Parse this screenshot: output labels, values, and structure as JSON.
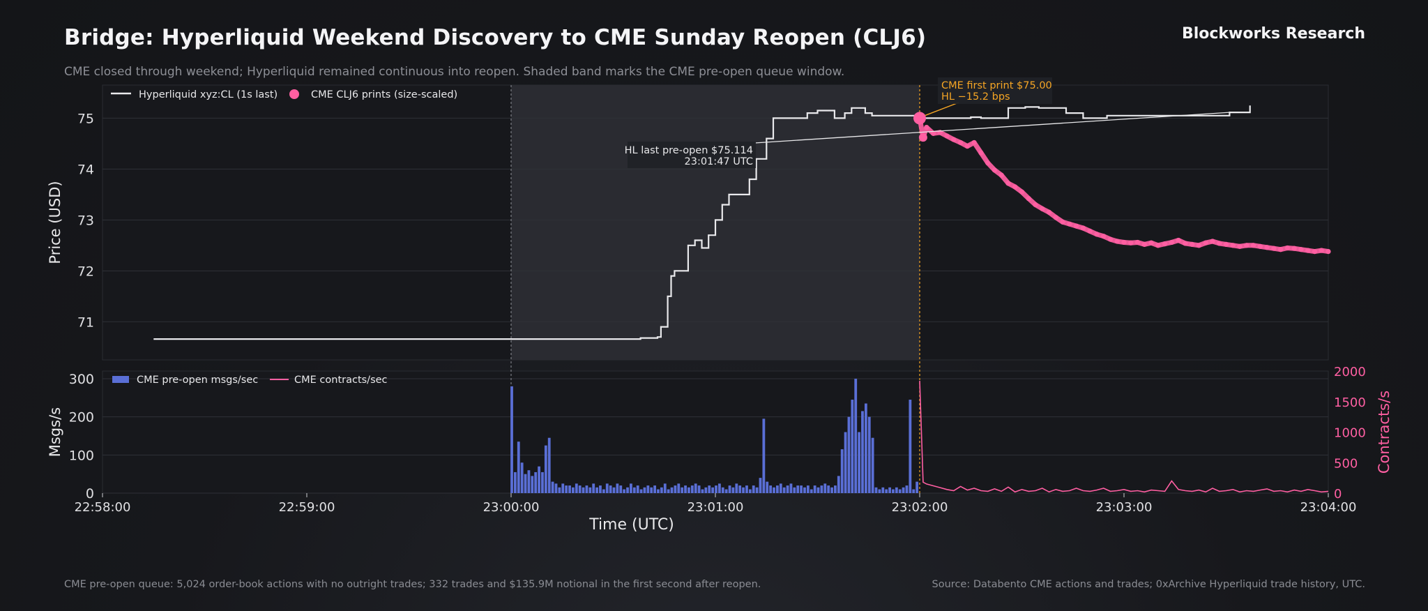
{
  "header": {
    "title": "Bridge: Hyperliquid Weekend Discovery to CME Sunday Reopen (CLJ6)",
    "brand": "Blockworks Research",
    "subtitle": "CME closed through weekend; Hyperliquid remained continuous into reopen. Shaded band marks the CME pre-open queue window."
  },
  "footer": {
    "left": "CME pre-open queue: 5,024 order-book actions with no outright trades; 332 trades and $135.9M notional in the first second after reopen.",
    "right": "Source: Databento CME actions and trades; 0xArchive Hyperliquid trade history, UTC."
  },
  "colors": {
    "hl_line": "#e9e9ec",
    "cme_prints": "#ff5fa2",
    "msgs_bar": "#5a6fd6",
    "contracts_line": "#ff5fa2",
    "annotation_orange": "#f5a524",
    "shade": "#2c2e34"
  },
  "chart_data": [
    {
      "type": "line",
      "panel": "price",
      "ylabel": "Price (USD)",
      "ylim": [
        70.25,
        75.65
      ],
      "yticks": [
        "71",
        "72",
        "73",
        "74",
        "75"
      ],
      "shaded_window": {
        "start": "23:00:00",
        "end": "23:02:00",
        "label": "CME pre-open queue window"
      },
      "legend": [
        "Hyperliquid xyz:CL (1s last)",
        "CME CLJ6 prints (size-scaled)"
      ],
      "annotations": {
        "hl_last_line1": "HL last pre-open $75.114",
        "hl_last_line2": "23:01:47 UTC",
        "cme_first_line1": "CME first print $75.00",
        "cme_first_line2": "HL −15.2 bps"
      },
      "series": [
        {
          "name": "Hyperliquid xyz:CL (1s last)",
          "x_seconds_from_225800": [
            15,
            140,
            150,
            156,
            158,
            160,
            162,
            163,
            164,
            166,
            167,
            168,
            169,
            170,
            172,
            174,
            176,
            178,
            180,
            182,
            184,
            186,
            188,
            190,
            192,
            194,
            195,
            197,
            200,
            205,
            207,
            210,
            212,
            215,
            218,
            220,
            222,
            224,
            226,
            240,
            251,
            255,
            258,
            262,
            266,
            271,
            275,
            280,
            283,
            288,
            295,
            300,
            310,
            320,
            329,
            331,
            337
          ],
          "values": [
            70.66,
            70.66,
            70.66,
            70.66,
            70.68,
            70.68,
            70.68,
            70.7,
            70.9,
            71.5,
            71.9,
            72.0,
            72.0,
            72.0,
            72.5,
            72.6,
            72.45,
            72.7,
            73.0,
            73.3,
            73.5,
            73.5,
            73.5,
            73.8,
            74.2,
            74.2,
            74.6,
            75.0,
            75.0,
            75.0,
            75.1,
            75.15,
            75.15,
            75.0,
            75.1,
            75.2,
            75.2,
            75.1,
            75.05,
            75.0,
            75.0,
            75.02,
            75.0,
            75.0,
            75.2,
            75.22,
            75.2,
            75.2,
            75.1,
            75.0,
            75.05,
            75.05,
            75.05,
            75.05,
            75.05,
            75.114,
            75.25
          ]
        },
        {
          "name": "CME CLJ6 prints (size-scaled)",
          "x_seconds_from_225800": [
            240,
            241,
            242,
            244,
            246,
            248,
            250,
            252,
            254,
            256,
            258,
            260,
            262,
            264,
            266,
            268,
            270,
            272,
            274,
            276,
            278,
            280,
            282,
            284,
            286,
            288,
            290,
            292,
            294,
            296,
            298,
            300,
            302,
            304,
            306,
            308,
            310,
            312,
            314,
            316,
            318,
            320,
            322,
            324,
            326,
            328,
            330,
            332,
            334,
            336,
            338,
            340,
            342,
            344,
            346,
            348,
            350,
            352,
            354,
            356,
            358,
            360
          ],
          "values": [
            75.0,
            74.62,
            74.82,
            74.7,
            74.72,
            74.65,
            74.58,
            74.52,
            74.45,
            74.52,
            74.32,
            74.12,
            73.98,
            73.88,
            73.72,
            73.65,
            73.55,
            73.42,
            73.3,
            73.22,
            73.15,
            73.05,
            72.96,
            72.92,
            72.88,
            72.84,
            72.78,
            72.72,
            72.68,
            72.62,
            72.58,
            72.56,
            72.55,
            72.56,
            72.52,
            72.55,
            72.5,
            72.53,
            72.56,
            72.6,
            72.54,
            72.52,
            72.5,
            72.55,
            72.58,
            72.54,
            72.52,
            72.5,
            72.48,
            72.5,
            72.5,
            72.48,
            72.46,
            72.44,
            72.42,
            72.45,
            72.44,
            72.42,
            72.4,
            72.38,
            72.4,
            72.38
          ]
        }
      ]
    },
    {
      "type": "bar",
      "panel": "volume",
      "ylabel": "Msgs/s",
      "ylabel_right": "Contracts/s",
      "xlabel": "Time (UTC)",
      "ylim": [
        0,
        320
      ],
      "ylim_right": [
        0,
        2000
      ],
      "yticks": [
        "0",
        "100",
        "200",
        "300"
      ],
      "yticks_right": [
        "0",
        "500",
        "1000",
        "1500",
        "2000"
      ],
      "xticks": [
        "22:58:00",
        "22:59:00",
        "23:00:00",
        "23:01:00",
        "23:02:00",
        "23:03:00",
        "23:04:00"
      ],
      "legend": [
        "CME pre-open msgs/sec",
        "CME contracts/sec"
      ],
      "series": [
        {
          "name": "CME pre-open msgs/sec",
          "x_seconds_from_225800": [
            120,
            121,
            122,
            123,
            124,
            125,
            126,
            127,
            128,
            129,
            130,
            131,
            132,
            133,
            134,
            135,
            136,
            137,
            138,
            139,
            140,
            141,
            142,
            143,
            144,
            145,
            146,
            147,
            148,
            149,
            150,
            151,
            152,
            153,
            154,
            155,
            156,
            157,
            158,
            159,
            160,
            161,
            162,
            163,
            164,
            165,
            166,
            167,
            168,
            169,
            170,
            171,
            172,
            173,
            174,
            175,
            176,
            177,
            178,
            179,
            180,
            181,
            182,
            183,
            184,
            185,
            186,
            187,
            188,
            189,
            190,
            191,
            192,
            193,
            194,
            195,
            196,
            197,
            198,
            199,
            200,
            201,
            202,
            203,
            204,
            205,
            206,
            207,
            208,
            209,
            210,
            211,
            212,
            213,
            214,
            215,
            216,
            217,
            218,
            219,
            220,
            221,
            222,
            223,
            224,
            225,
            226,
            227,
            228,
            229,
            230,
            231,
            232,
            233,
            234,
            235,
            236,
            237,
            238,
            239
          ],
          "values": [
            280,
            55,
            135,
            80,
            50,
            60,
            45,
            55,
            70,
            55,
            125,
            145,
            30,
            25,
            15,
            25,
            20,
            20,
            15,
            25,
            20,
            15,
            20,
            15,
            25,
            15,
            20,
            10,
            25,
            20,
            15,
            25,
            20,
            10,
            15,
            25,
            15,
            20,
            10,
            15,
            20,
            15,
            20,
            10,
            15,
            25,
            10,
            15,
            20,
            25,
            15,
            20,
            15,
            20,
            25,
            20,
            10,
            15,
            20,
            15,
            20,
            25,
            15,
            10,
            20,
            15,
            25,
            20,
            15,
            20,
            10,
            20,
            15,
            40,
            195,
            30,
            20,
            15,
            20,
            25,
            15,
            20,
            25,
            15,
            20,
            20,
            15,
            20,
            10,
            20,
            15,
            20,
            25,
            20,
            15,
            20,
            45,
            115,
            160,
            200,
            245,
            300,
            160,
            215,
            235,
            200,
            145,
            15,
            10,
            15,
            10,
            15,
            10,
            15,
            10,
            15,
            20,
            245,
            10,
            30
          ],
          "bar_seconds_note": "one bar per second between 23:00:00 and 23:02:00"
        },
        {
          "name": "CME contracts/sec",
          "x_seconds_from_225800": [
            240,
            241,
            242,
            244,
            246,
            248,
            250,
            252,
            254,
            256,
            258,
            260,
            262,
            264,
            266,
            268,
            270,
            272,
            274,
            276,
            278,
            280,
            282,
            284,
            286,
            288,
            290,
            292,
            294,
            296,
            298,
            300,
            302,
            304,
            306,
            308,
            310,
            312,
            314,
            316,
            318,
            320,
            322,
            324,
            326,
            328,
            330,
            332,
            334,
            336,
            338,
            340,
            342,
            344,
            346,
            348,
            350,
            352,
            354,
            356,
            358,
            360
          ],
          "values": [
            1840,
            180,
            150,
            120,
            90,
            60,
            40,
            110,
            50,
            80,
            40,
            30,
            70,
            30,
            100,
            20,
            60,
            30,
            40,
            80,
            20,
            60,
            30,
            40,
            80,
            40,
            30,
            50,
            80,
            30,
            40,
            60,
            30,
            40,
            20,
            50,
            40,
            30,
            200,
            60,
            40,
            30,
            50,
            20,
            80,
            30,
            40,
            60,
            20,
            40,
            30,
            50,
            70,
            30,
            40,
            20,
            50,
            30,
            60,
            40,
            20,
            30
          ]
        }
      ]
    }
  ]
}
